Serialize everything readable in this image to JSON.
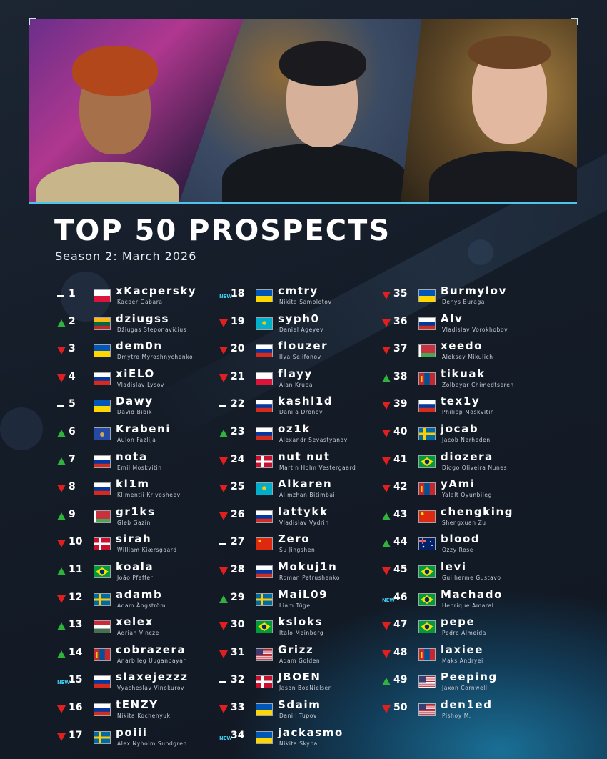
{
  "title": "TOP 50 PROSPECTS",
  "subtitle": "Season 2: March 2026",
  "colors": {
    "up": "#2fb33c",
    "down": "#e01f1f",
    "new": "#3ec8e8",
    "accent": "#4fc3e8",
    "background": "#141c28"
  },
  "players": [
    {
      "rank": "1",
      "trend": "same",
      "flag": "pl",
      "nick": "xKacpersky",
      "name": "Kacper Gabara"
    },
    {
      "rank": "2",
      "trend": "up",
      "flag": "lt",
      "nick": "dziugss",
      "name": "Džiugas Steponavičius"
    },
    {
      "rank": "3",
      "trend": "down",
      "flag": "ua",
      "nick": "dem0n",
      "name": "Dmytro Myroshnychenko"
    },
    {
      "rank": "4",
      "trend": "down",
      "flag": "ru",
      "nick": "xiELO",
      "name": "Vladislav Lysov"
    },
    {
      "rank": "5",
      "trend": "same",
      "flag": "ua",
      "nick": "Dawy",
      "name": "David Bibik"
    },
    {
      "rank": "6",
      "trend": "up",
      "flag": "xk",
      "nick": "Krabeni",
      "name": "Aulon Fazlija"
    },
    {
      "rank": "7",
      "trend": "up",
      "flag": "ru",
      "nick": "nota",
      "name": "Emil Moskvitin"
    },
    {
      "rank": "8",
      "trend": "down",
      "flag": "ru",
      "nick": "kl1m",
      "name": "Klimentii Krivosheev"
    },
    {
      "rank": "9",
      "trend": "up",
      "flag": "by",
      "nick": "gr1ks",
      "name": "Gleb Gazin"
    },
    {
      "rank": "10",
      "trend": "down",
      "flag": "dk",
      "nick": "sirah",
      "name": "William Kjærsgaard"
    },
    {
      "rank": "11",
      "trend": "up",
      "flag": "br",
      "nick": "koala",
      "name": "João Pfeffer"
    },
    {
      "rank": "12",
      "trend": "down",
      "flag": "se",
      "nick": "adamb",
      "name": "Adam Ångström"
    },
    {
      "rank": "13",
      "trend": "up",
      "flag": "hu",
      "nick": "xelex",
      "name": "Adrian Vincze"
    },
    {
      "rank": "14",
      "trend": "up",
      "flag": "mn",
      "nick": "cobrazera",
      "name": "Anarbileg Uuganbayar"
    },
    {
      "rank": "15",
      "trend": "new",
      "flag": "ru",
      "nick": "slaxejezzz",
      "name": "Vyacheslav Vinokurov"
    },
    {
      "rank": "16",
      "trend": "down",
      "flag": "ru",
      "nick": "tENZY",
      "name": "Nikita Kochenyuk"
    },
    {
      "rank": "17",
      "trend": "down",
      "flag": "se",
      "nick": "poiii",
      "name": "Alex Nyholm Sundgren"
    },
    {
      "rank": "18",
      "trend": "new",
      "flag": "ua",
      "nick": "cmtry",
      "name": "Nikita Samolotov"
    },
    {
      "rank": "19",
      "trend": "down",
      "flag": "kz",
      "nick": "syph0",
      "name": "Daniel Ageyev"
    },
    {
      "rank": "20",
      "trend": "down",
      "flag": "ru",
      "nick": "flouzer",
      "name": "Ilya Selifonov"
    },
    {
      "rank": "21",
      "trend": "down",
      "flag": "pl",
      "nick": "flayy",
      "name": "Alan Krupa"
    },
    {
      "rank": "22",
      "trend": "same",
      "flag": "ru",
      "nick": "kashl1d",
      "name": "Danila Dronov"
    },
    {
      "rank": "23",
      "trend": "up",
      "flag": "ru",
      "nick": "oz1k",
      "name": "Alexandr Sevastyanov"
    },
    {
      "rank": "24",
      "trend": "down",
      "flag": "dk",
      "nick": "nut nut",
      "name": "Martin Holm Vestergaard"
    },
    {
      "rank": "25",
      "trend": "down",
      "flag": "kz",
      "nick": "Alkaren",
      "name": "Alimzhan Bitimbai"
    },
    {
      "rank": "26",
      "trend": "down",
      "flag": "ru",
      "nick": "lattykk",
      "name": "Vladislav Vydrin"
    },
    {
      "rank": "27",
      "trend": "same",
      "flag": "cn",
      "nick": "Zero",
      "name": "Su Jingshen"
    },
    {
      "rank": "28",
      "trend": "down",
      "flag": "ru",
      "nick": "Mokuj1n",
      "name": "Roman Petrushenko"
    },
    {
      "rank": "29",
      "trend": "up",
      "flag": "se",
      "nick": "MaiL09",
      "name": "Liam Tügel"
    },
    {
      "rank": "30",
      "trend": "down",
      "flag": "br",
      "nick": "ksloks",
      "name": "Italo Meinberg"
    },
    {
      "rank": "31",
      "trend": "down",
      "flag": "us",
      "nick": "Grizz",
      "name": "Adam Golden"
    },
    {
      "rank": "32",
      "trend": "same",
      "flag": "dk",
      "nick": "JBOEN",
      "name": "Jason BoeNielsen"
    },
    {
      "rank": "33",
      "trend": "down",
      "flag": "ua",
      "nick": "Sdaim",
      "name": "Daniil Tupov"
    },
    {
      "rank": "34",
      "trend": "new",
      "flag": "ua",
      "nick": "jackasmo",
      "name": "Nikita Skyba"
    },
    {
      "rank": "35",
      "trend": "down",
      "flag": "ua",
      "nick": "Burmylov",
      "name": "Denys Buraga"
    },
    {
      "rank": "36",
      "trend": "down",
      "flag": "ru",
      "nick": "Alv",
      "name": "Vladislav Vorokhobov"
    },
    {
      "rank": "37",
      "trend": "down",
      "flag": "by",
      "nick": "xeedo",
      "name": "Aleksey Mikulich"
    },
    {
      "rank": "38",
      "trend": "up",
      "flag": "mn",
      "nick": "tikuak",
      "name": "Zolbayar Chimedtseren"
    },
    {
      "rank": "39",
      "trend": "down",
      "flag": "ru",
      "nick": "tex1y",
      "name": "Philipp Moskvitin"
    },
    {
      "rank": "40",
      "trend": "down",
      "flag": "se",
      "nick": "jocab",
      "name": "Jacob Nerheden"
    },
    {
      "rank": "41",
      "trend": "down",
      "flag": "br",
      "nick": "diozera",
      "name": "Diogo Oliveira Nunes"
    },
    {
      "rank": "42",
      "trend": "down",
      "flag": "mn",
      "nick": "yAmi",
      "name": "Yalalt Oyunbileg"
    },
    {
      "rank": "43",
      "trend": "up",
      "flag": "cn",
      "nick": "chengking",
      "name": "Shengxuan Zu"
    },
    {
      "rank": "44",
      "trend": "up",
      "flag": "au",
      "nick": "blood",
      "name": "Ozzy Rose"
    },
    {
      "rank": "45",
      "trend": "down",
      "flag": "br",
      "nick": "levi",
      "name": "Guilherme Gustavo"
    },
    {
      "rank": "46",
      "trend": "new",
      "flag": "br",
      "nick": "Machado",
      "name": "Henrique Amaral"
    },
    {
      "rank": "47",
      "trend": "down",
      "flag": "br",
      "nick": "pepe",
      "name": "Pedro Almeida"
    },
    {
      "rank": "48",
      "trend": "down",
      "flag": "mn",
      "nick": "laxiee",
      "name": "Maks Andryei"
    },
    {
      "rank": "49",
      "trend": "up",
      "flag": "us",
      "nick": "Peeping",
      "name": "Jaxon Cornwell"
    },
    {
      "rank": "50",
      "trend": "down",
      "flag": "us",
      "nick": "den1ed",
      "name": "Pishoy M."
    }
  ],
  "new_label": "NEW"
}
